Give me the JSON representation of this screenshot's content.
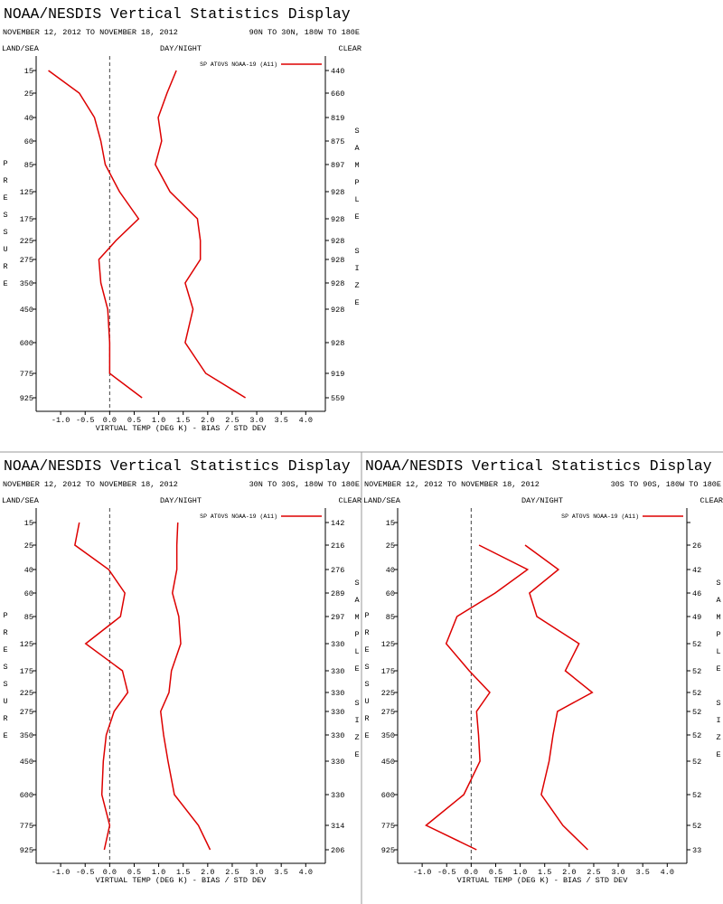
{
  "chart_data": [
    {
      "type": "line",
      "title": "NOAA/NESDIS Vertical Statistics Display",
      "date_range": "NOVEMBER 12, 2012 TO NOVEMBER 18, 2012",
      "region": "90N TO 30N, 180W TO 180E",
      "land_sea": "LAND/SEA",
      "day_night": "DAY/NIGHT",
      "clear": "CLEAR",
      "y_label": "PRESSURE",
      "y2_label": "SAMPLE SIZE",
      "x_label": "VIRTUAL TEMP (DEG K) - BIAS / STD DEV",
      "categories": [
        "15",
        "25",
        "40",
        "60",
        "85",
        "125",
        "175",
        "225",
        "275",
        "350",
        "450",
        "600",
        "775",
        "925"
      ],
      "series": [
        {
          "name": "SP ATOVS NOAA-19 (A11)",
          "color": "#dd0000",
          "bias": [
            -1.25,
            -0.62,
            -0.31,
            -0.18,
            -0.09,
            0.2,
            0.59,
            0.13,
            -0.22,
            -0.18,
            -0.04,
            0.0,
            0.0,
            0.66
          ],
          "std_dev": [
            1.36,
            1.17,
            0.99,
            1.06,
            0.93,
            1.23,
            1.79,
            1.85,
            1.85,
            1.54,
            1.7,
            1.54,
            1.96,
            2.77
          ]
        }
      ],
      "sample_size": [
        440,
        660,
        819,
        875,
        897,
        928,
        928,
        928,
        928,
        928,
        928,
        928,
        919,
        559
      ],
      "xlim": [
        -1.5,
        4.4
      ],
      "xticks": [
        {
          "value": -1,
          "label": "-1.0"
        },
        -0.5,
        {
          "value": 0,
          "label": "0.0"
        },
        0.5,
        {
          "value": 1,
          "label": "1.0"
        },
        1.5,
        {
          "value": 2,
          "label": "2.0"
        },
        2.5,
        {
          "value": 3,
          "label": "3.0"
        },
        3.5,
        {
          "value": 4,
          "label": "4.0"
        }
      ],
      "zero_line": true
    },
    {
      "type": "line",
      "title": "NOAA/NESDIS Vertical Statistics Display",
      "date_range": "NOVEMBER 12, 2012 TO NOVEMBER 18, 2012",
      "region": "30N TO 30S, 180W TO 180E",
      "land_sea": "LAND/SEA",
      "day_night": "DAY/NIGHT",
      "clear": "CLEAR",
      "y_label": "PRESSURE",
      "y2_label": "SAMPLE SIZE",
      "x_label": "VIRTUAL TEMP (DEG K) - BIAS / STD DEV",
      "categories": [
        "15",
        "25",
        "40",
        "60",
        "85",
        "125",
        "175",
        "225",
        "275",
        "350",
        "450",
        "600",
        "775",
        "925"
      ],
      "series": [
        {
          "name": "SP ATOVS NOAA-19 (A11)",
          "color": "#dd0000",
          "bias": [
            -0.62,
            -0.71,
            -0.02,
            0.31,
            0.22,
            -0.49,
            0.26,
            0.37,
            0.09,
            -0.07,
            -0.13,
            -0.16,
            0.0,
            -0.11
          ],
          "std_dev": [
            1.39,
            1.37,
            1.37,
            1.28,
            1.41,
            1.45,
            1.26,
            1.21,
            1.04,
            1.1,
            1.19,
            1.32,
            1.81,
            2.05
          ]
        }
      ],
      "sample_size": [
        142,
        216,
        276,
        289,
        297,
        330,
        330,
        330,
        330,
        330,
        330,
        330,
        314,
        206
      ],
      "xlim": [
        -1.5,
        4.4
      ],
      "xticks": [
        {
          "value": -1,
          "label": "-1.0"
        },
        -0.5,
        {
          "value": 0,
          "label": "0.0"
        },
        0.5,
        {
          "value": 1,
          "label": "1.0"
        },
        1.5,
        {
          "value": 2,
          "label": "2.0"
        },
        2.5,
        {
          "value": 3,
          "label": "3.0"
        },
        3.5,
        {
          "value": 4,
          "label": "4.0"
        }
      ],
      "zero_line": true
    },
    {
      "type": "line",
      "title": "NOAA/NESDIS Vertical Statistics Display",
      "date_range": "NOVEMBER 12, 2012 TO NOVEMBER 18, 2012",
      "region": "30S TO 90S, 180W TO 180E",
      "land_sea": "LAND/SEA",
      "day_night": "DAY/NIGHT",
      "clear": "CLEAR",
      "y_label": "PRESSURE",
      "y2_label": "SAMPLE SIZE",
      "x_label": "VIRTUAL TEMP (DEG K) - BIAS / STD DEV",
      "categories": [
        "15",
        "25",
        "40",
        "60",
        "85",
        "125",
        "175",
        "225",
        "275",
        "350",
        "450",
        "600",
        "775",
        "925"
      ],
      "series": [
        {
          "name": "SP ATOVS NOAA-19 (A11)",
          "color": "#dd0000",
          "bias": [
            null,
            0.16,
            1.15,
            0.49,
            -0.29,
            -0.51,
            -0.04,
            0.38,
            0.11,
            0.15,
            0.18,
            -0.15,
            -0.92,
            0.11
          ],
          "std_dev": [
            null,
            1.1,
            1.78,
            1.19,
            1.34,
            2.2,
            1.92,
            2.47,
            1.76,
            1.67,
            1.59,
            1.43,
            1.87,
            2.38
          ]
        }
      ],
      "sample_size": [
        null,
        26,
        42,
        46,
        49,
        52,
        52,
        52,
        52,
        52,
        52,
        52,
        52,
        33
      ],
      "xlim": [
        -1.5,
        4.4
      ],
      "xticks": [
        {
          "value": -1,
          "label": "-1.0"
        },
        -0.5,
        {
          "value": 0,
          "label": "0.0"
        },
        0.5,
        {
          "value": 1,
          "label": "1.0"
        },
        1.5,
        {
          "value": 2,
          "label": "2.0"
        },
        2.5,
        {
          "value": 3,
          "label": "3.0"
        },
        3.5,
        {
          "value": 4,
          "label": "4.0"
        }
      ],
      "zero_line": true
    }
  ]
}
